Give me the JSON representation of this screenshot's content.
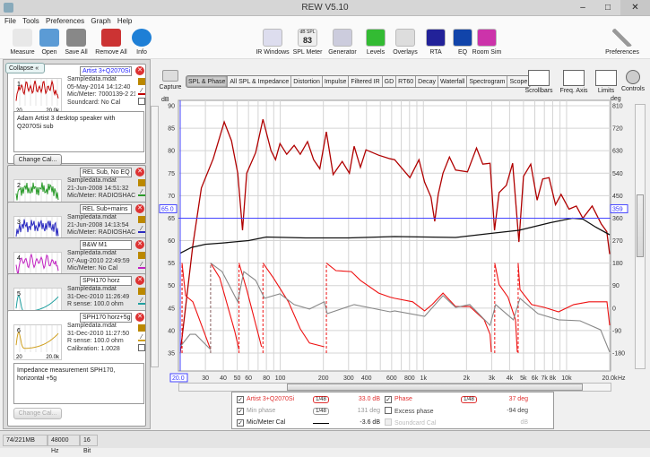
{
  "window": {
    "title": "REW V5.10",
    "controls": [
      "–",
      "□",
      "✕"
    ]
  },
  "menu": [
    "File",
    "Tools",
    "Preferences",
    "Graph",
    "Help"
  ],
  "toolbar": {
    "left": [
      {
        "label": "Measure",
        "icon": "measure-icon",
        "color": "#e8e8e8"
      },
      {
        "label": "Open",
        "icon": "folder-icon",
        "color": "#5b9bd5"
      },
      {
        "label": "Save All",
        "icon": "save-icon",
        "color": "#888"
      },
      {
        "label": "Remove All",
        "icon": "remove-icon",
        "color": "#c33"
      },
      {
        "label": "Info",
        "icon": "info-icon",
        "color": "#1e7fd6"
      }
    ],
    "right": [
      {
        "label": "IR Windows",
        "icon": "ir-windows-icon",
        "color": "#dde"
      },
      {
        "label": "SPL Meter",
        "icon": "spl-meter-icon",
        "color": "#eee",
        "value": "83",
        "top": "dB SPL"
      },
      {
        "label": "Generator",
        "icon": "generator-icon",
        "color": "#ccd"
      },
      {
        "label": "Levels",
        "icon": "levels-icon",
        "color": "#3b3"
      },
      {
        "label": "Overlays",
        "icon": "overlays-icon",
        "color": "#ddd"
      },
      {
        "label": "RTA",
        "icon": "rta-icon",
        "color": "#229"
      },
      {
        "label": "EQ",
        "icon": "eq-icon",
        "color": "#14a"
      },
      {
        "label": "Room Sim",
        "icon": "room-sim-icon",
        "color": "#c3a"
      }
    ],
    "preferences": "Preferences"
  },
  "left_panel": {
    "collapse": "Collapse",
    "measurements": [
      {
        "index": "1",
        "name": "Artist 3+Q2070Si",
        "lines": [
          "Sampledata.mdat",
          "05-May-2014 14:12:40",
          "Mic/Meter: 7000139-2 21",
          "Soundcard: No Cal"
        ],
        "color": "#c00000",
        "notes": "Adam Artist 3 desktop speaker with Q2070Si sub",
        "button": "Change Cal...",
        "axis": [
          "20",
          "20.0k"
        ]
      },
      {
        "index": "2",
        "name": "REL Sub, No EQ",
        "lines": [
          "Sampledata.mdat",
          "21-Jun-2008 14:51:32",
          "Mic/Meter: RADIOSHACK"
        ],
        "color": "#2a9a2a",
        "axis": [
          "20",
          "200"
        ]
      },
      {
        "index": "3",
        "name": "REL Sub+mains",
        "lines": [
          "Sampledata.mdat",
          "21-Jun-2008 14:13:54",
          "Mic/Meter: RADIOSHACK"
        ],
        "color": "#2a2ac0",
        "axis": [
          "20",
          "20.0k"
        ]
      },
      {
        "index": "4",
        "name": "B&W M1",
        "lines": [
          "Sampledata.mdat",
          "07-Aug-2010 22:49:59",
          "Mic/Meter: No Cal"
        ],
        "color": "#c020c0",
        "axis": [
          "20",
          "20.0k"
        ]
      },
      {
        "index": "5",
        "name": "SPH170 horz",
        "lines": [
          "Sampledata.mdat",
          "31-Dec-2010 11:26:49",
          "R sense: 100.0 ohm"
        ],
        "color": "#20a0a0",
        "axis": [
          "20",
          "20.0k"
        ]
      },
      {
        "index": "6",
        "name": "SPH170 horz+5g",
        "lines": [
          "Sampledata.mdat",
          "31-Dec-2010 11:27:50",
          "R sense: 100.0 ohm",
          "Calibration: 1.0028"
        ],
        "color": "#d0a020",
        "notes": "Impedance measurement SPH170, horizontal +5g",
        "button": "Change Cal...",
        "axis": [
          "20",
          "20.0k"
        ]
      }
    ]
  },
  "graph": {
    "capture": "Capture",
    "tabs": [
      "SPL & Phase",
      "All SPL & Impedance",
      "Distortion",
      "Impulse",
      "Filtered IR",
      "GD",
      "RT60",
      "Decay",
      "Waterfall",
      "Spectrogram",
      "Scope"
    ],
    "active_tab": "SPL & Phase",
    "tools": [
      "Scrollbars",
      "Freq. Axis",
      "Limits",
      "Controls"
    ],
    "cursor": {
      "freq": "20.0",
      "level": "65.0",
      "phase": "359"
    }
  },
  "legend": {
    "rows": [
      {
        "checked": true,
        "label": "Artist 3+Q2070Si",
        "smoothing": "1/48",
        "value": "33.0 dB",
        "color": "#e03030"
      },
      {
        "checked": true,
        "label": "Phase",
        "smoothing": "1/48",
        "value": "37 deg",
        "color": "#e03030"
      },
      {
        "checked": true,
        "label": "Min phase",
        "smoothing": "1/48",
        "value": "131 deg",
        "color": "#999"
      },
      {
        "checked": false,
        "label": "Excess phase",
        "value": "-94 deg",
        "color": "#444"
      },
      {
        "checked": true,
        "label": "Mic/Meter Cal",
        "value": "-3.6 dB",
        "color": "#222"
      },
      {
        "checked": false,
        "disabled": true,
        "label": "Soundcard Cal",
        "value": "dB",
        "color": "#bbb"
      }
    ]
  },
  "status": [
    "74/221MB",
    "48000 Hz",
    "16 Bit"
  ],
  "chart_data": {
    "type": "line",
    "xlabel": "Hz",
    "ylabel": "dB",
    "y2label": "deg",
    "xscale": "log",
    "xlim": [
      20,
      20000
    ],
    "ylim": [
      35,
      90
    ],
    "y2lim": [
      -180,
      810
    ],
    "grid": true,
    "x_ticks": [
      "30",
      "40",
      "50",
      "60",
      "80",
      "100",
      "200",
      "300",
      "400",
      "600",
      "800",
      "1k",
      "2k",
      "3k",
      "4k",
      "5k",
      "6k",
      "7k",
      "8k",
      "10k",
      "20.0k"
    ],
    "y_ticks": [
      "90",
      "85",
      "80",
      "75",
      "70",
      "65",
      "60",
      "55",
      "50",
      "45",
      "40",
      "35"
    ],
    "y2_ticks": [
      "810",
      "720",
      "630",
      "540",
      "450",
      "360",
      "270",
      "180",
      "90",
      "0",
      "-90",
      "-180"
    ],
    "series": [
      {
        "name": "Artist 3+Q2070Si",
        "axis": "dB",
        "color": "#b00000",
        "points": [
          [
            20,
            35
          ],
          [
            24.5,
            59
          ],
          [
            28.1,
            71.7
          ],
          [
            34,
            78.2
          ],
          [
            40.6,
            86.4
          ],
          [
            45.6,
            82.2
          ],
          [
            50.5,
            75
          ],
          [
            54.5,
            62.3
          ],
          [
            58.3,
            75
          ],
          [
            67.4,
            79.6
          ],
          [
            75.7,
            87
          ],
          [
            86.2,
            80
          ],
          [
            92.7,
            78
          ],
          [
            99.5,
            81.6
          ],
          [
            111,
            79.2
          ],
          [
            125,
            81.2
          ],
          [
            138,
            79.2
          ],
          [
            155,
            82
          ],
          [
            171,
            78
          ],
          [
            189,
            76
          ],
          [
            210,
            84.2
          ],
          [
            234,
            74.7
          ],
          [
            271,
            77.6
          ],
          [
            304,
            75
          ],
          [
            328,
            81
          ],
          [
            363,
            76.3
          ],
          [
            397,
            80.2
          ],
          [
            487,
            79
          ],
          [
            585,
            78.2
          ],
          [
            630,
            78
          ],
          [
            805,
            74
          ],
          [
            931,
            78
          ],
          [
            1020,
            73
          ],
          [
            1130,
            69.7
          ],
          [
            1200,
            64.3
          ],
          [
            1270,
            70.3
          ],
          [
            1370,
            75
          ],
          [
            1520,
            78.6
          ],
          [
            1680,
            75.7
          ],
          [
            2030,
            75.3
          ],
          [
            2350,
            80.6
          ],
          [
            2600,
            77
          ],
          [
            2920,
            77.2
          ],
          [
            3140,
            62.3
          ],
          [
            3380,
            70.7
          ],
          [
            3800,
            72.3
          ],
          [
            4200,
            77.2
          ],
          [
            4650,
            59.7
          ],
          [
            5000,
            74.3
          ],
          [
            5620,
            77
          ],
          [
            6230,
            69
          ],
          [
            6810,
            73.7
          ],
          [
            7550,
            74
          ],
          [
            8370,
            68
          ],
          [
            9150,
            70.3
          ],
          [
            10400,
            67
          ],
          [
            11700,
            67.7
          ],
          [
            13000,
            65
          ],
          [
            15100,
            67.7
          ],
          [
            17500,
            63.7
          ],
          [
            19100,
            62
          ],
          [
            20000,
            57
          ]
        ]
      },
      {
        "name": "Mic/Meter Cal",
        "axis": "dB",
        "color": "#111111",
        "points": [
          [
            20,
            57.2
          ],
          [
            24,
            58.5
          ],
          [
            30,
            59.2
          ],
          [
            40,
            59.5
          ],
          [
            60,
            60
          ],
          [
            80,
            60.8
          ],
          [
            150,
            60.6
          ],
          [
            300,
            60.6
          ],
          [
            630,
            60.9
          ],
          [
            1680,
            60.7
          ],
          [
            3140,
            61.7
          ],
          [
            4650,
            62.3
          ],
          [
            7700,
            64
          ],
          [
            11000,
            65
          ],
          [
            13000,
            64.8
          ],
          [
            16000,
            63
          ],
          [
            19000,
            61.7
          ],
          [
            20000,
            61.3
          ]
        ]
      },
      {
        "name": "Phase",
        "axis": "deg",
        "color": "#ee1111",
        "points": [
          [
            20,
            180
          ],
          [
            20.6,
            -180
          ],
          [
            20.6,
            180
          ],
          [
            21.8,
            50
          ],
          [
            24.5,
            25
          ],
          [
            32.6,
            -166
          ],
          [
            32.6,
            180
          ],
          [
            37.8,
            121
          ],
          [
            48.1,
            -94
          ],
          [
            51.5,
            -166
          ],
          [
            51.5,
            180
          ],
          [
            58.3,
            74
          ],
          [
            74,
            -155
          ],
          [
            75.7,
            180
          ],
          [
            89.5,
            121
          ],
          [
            114,
            25
          ],
          [
            138,
            -83
          ],
          [
            160,
            -140
          ],
          [
            203,
            -155
          ],
          [
            210,
            180
          ],
          [
            245,
            150
          ],
          [
            314,
            146
          ],
          [
            363,
            111
          ],
          [
            487,
            60
          ],
          [
            585,
            44
          ],
          [
            630,
            39
          ],
          [
            841,
            25
          ],
          [
            1020,
            -11
          ],
          [
            1150,
            14
          ],
          [
            1370,
            60
          ],
          [
            1680,
            6
          ],
          [
            2110,
            6
          ],
          [
            2660,
            -47
          ],
          [
            2920,
            -105
          ],
          [
            2980,
            -176
          ],
          [
            3150,
            180
          ],
          [
            3380,
            94
          ],
          [
            3900,
            44
          ],
          [
            4400,
            -47
          ],
          [
            4530,
            -176
          ],
          [
            4590,
            180
          ],
          [
            4730,
            74
          ],
          [
            5700,
            14
          ],
          [
            6980,
            3
          ],
          [
            8790,
            -15
          ],
          [
            11220,
            14
          ],
          [
            14350,
            25
          ],
          [
            19150,
            25
          ],
          [
            20000,
            -69
          ]
        ]
      },
      {
        "name": "Min phase",
        "axis": "deg",
        "color": "#888888",
        "points": [
          [
            20,
            -155
          ],
          [
            23.4,
            -105
          ],
          [
            25.6,
            -105
          ],
          [
            32.6,
            -166
          ],
          [
            32.6,
            180
          ],
          [
            39.2,
            146
          ],
          [
            50.5,
            25
          ],
          [
            55.6,
            146
          ],
          [
            67.4,
            111
          ],
          [
            77.6,
            39
          ],
          [
            99.5,
            57
          ],
          [
            125,
            14
          ],
          [
            160,
            -4
          ],
          [
            203,
            25
          ],
          [
            213,
            -22
          ],
          [
            328,
            14
          ],
          [
            585,
            -15
          ],
          [
            630,
            -11
          ],
          [
            1020,
            -33
          ],
          [
            1370,
            50
          ],
          [
            1680,
            3
          ],
          [
            2110,
            14
          ],
          [
            2920,
            -69
          ],
          [
            3200,
            14
          ],
          [
            4250,
            -47
          ],
          [
            4730,
            39
          ],
          [
            6310,
            -22
          ],
          [
            8790,
            -47
          ],
          [
            12420,
            -51
          ],
          [
            17300,
            -87
          ],
          [
            20000,
            -176
          ]
        ]
      }
    ]
  }
}
